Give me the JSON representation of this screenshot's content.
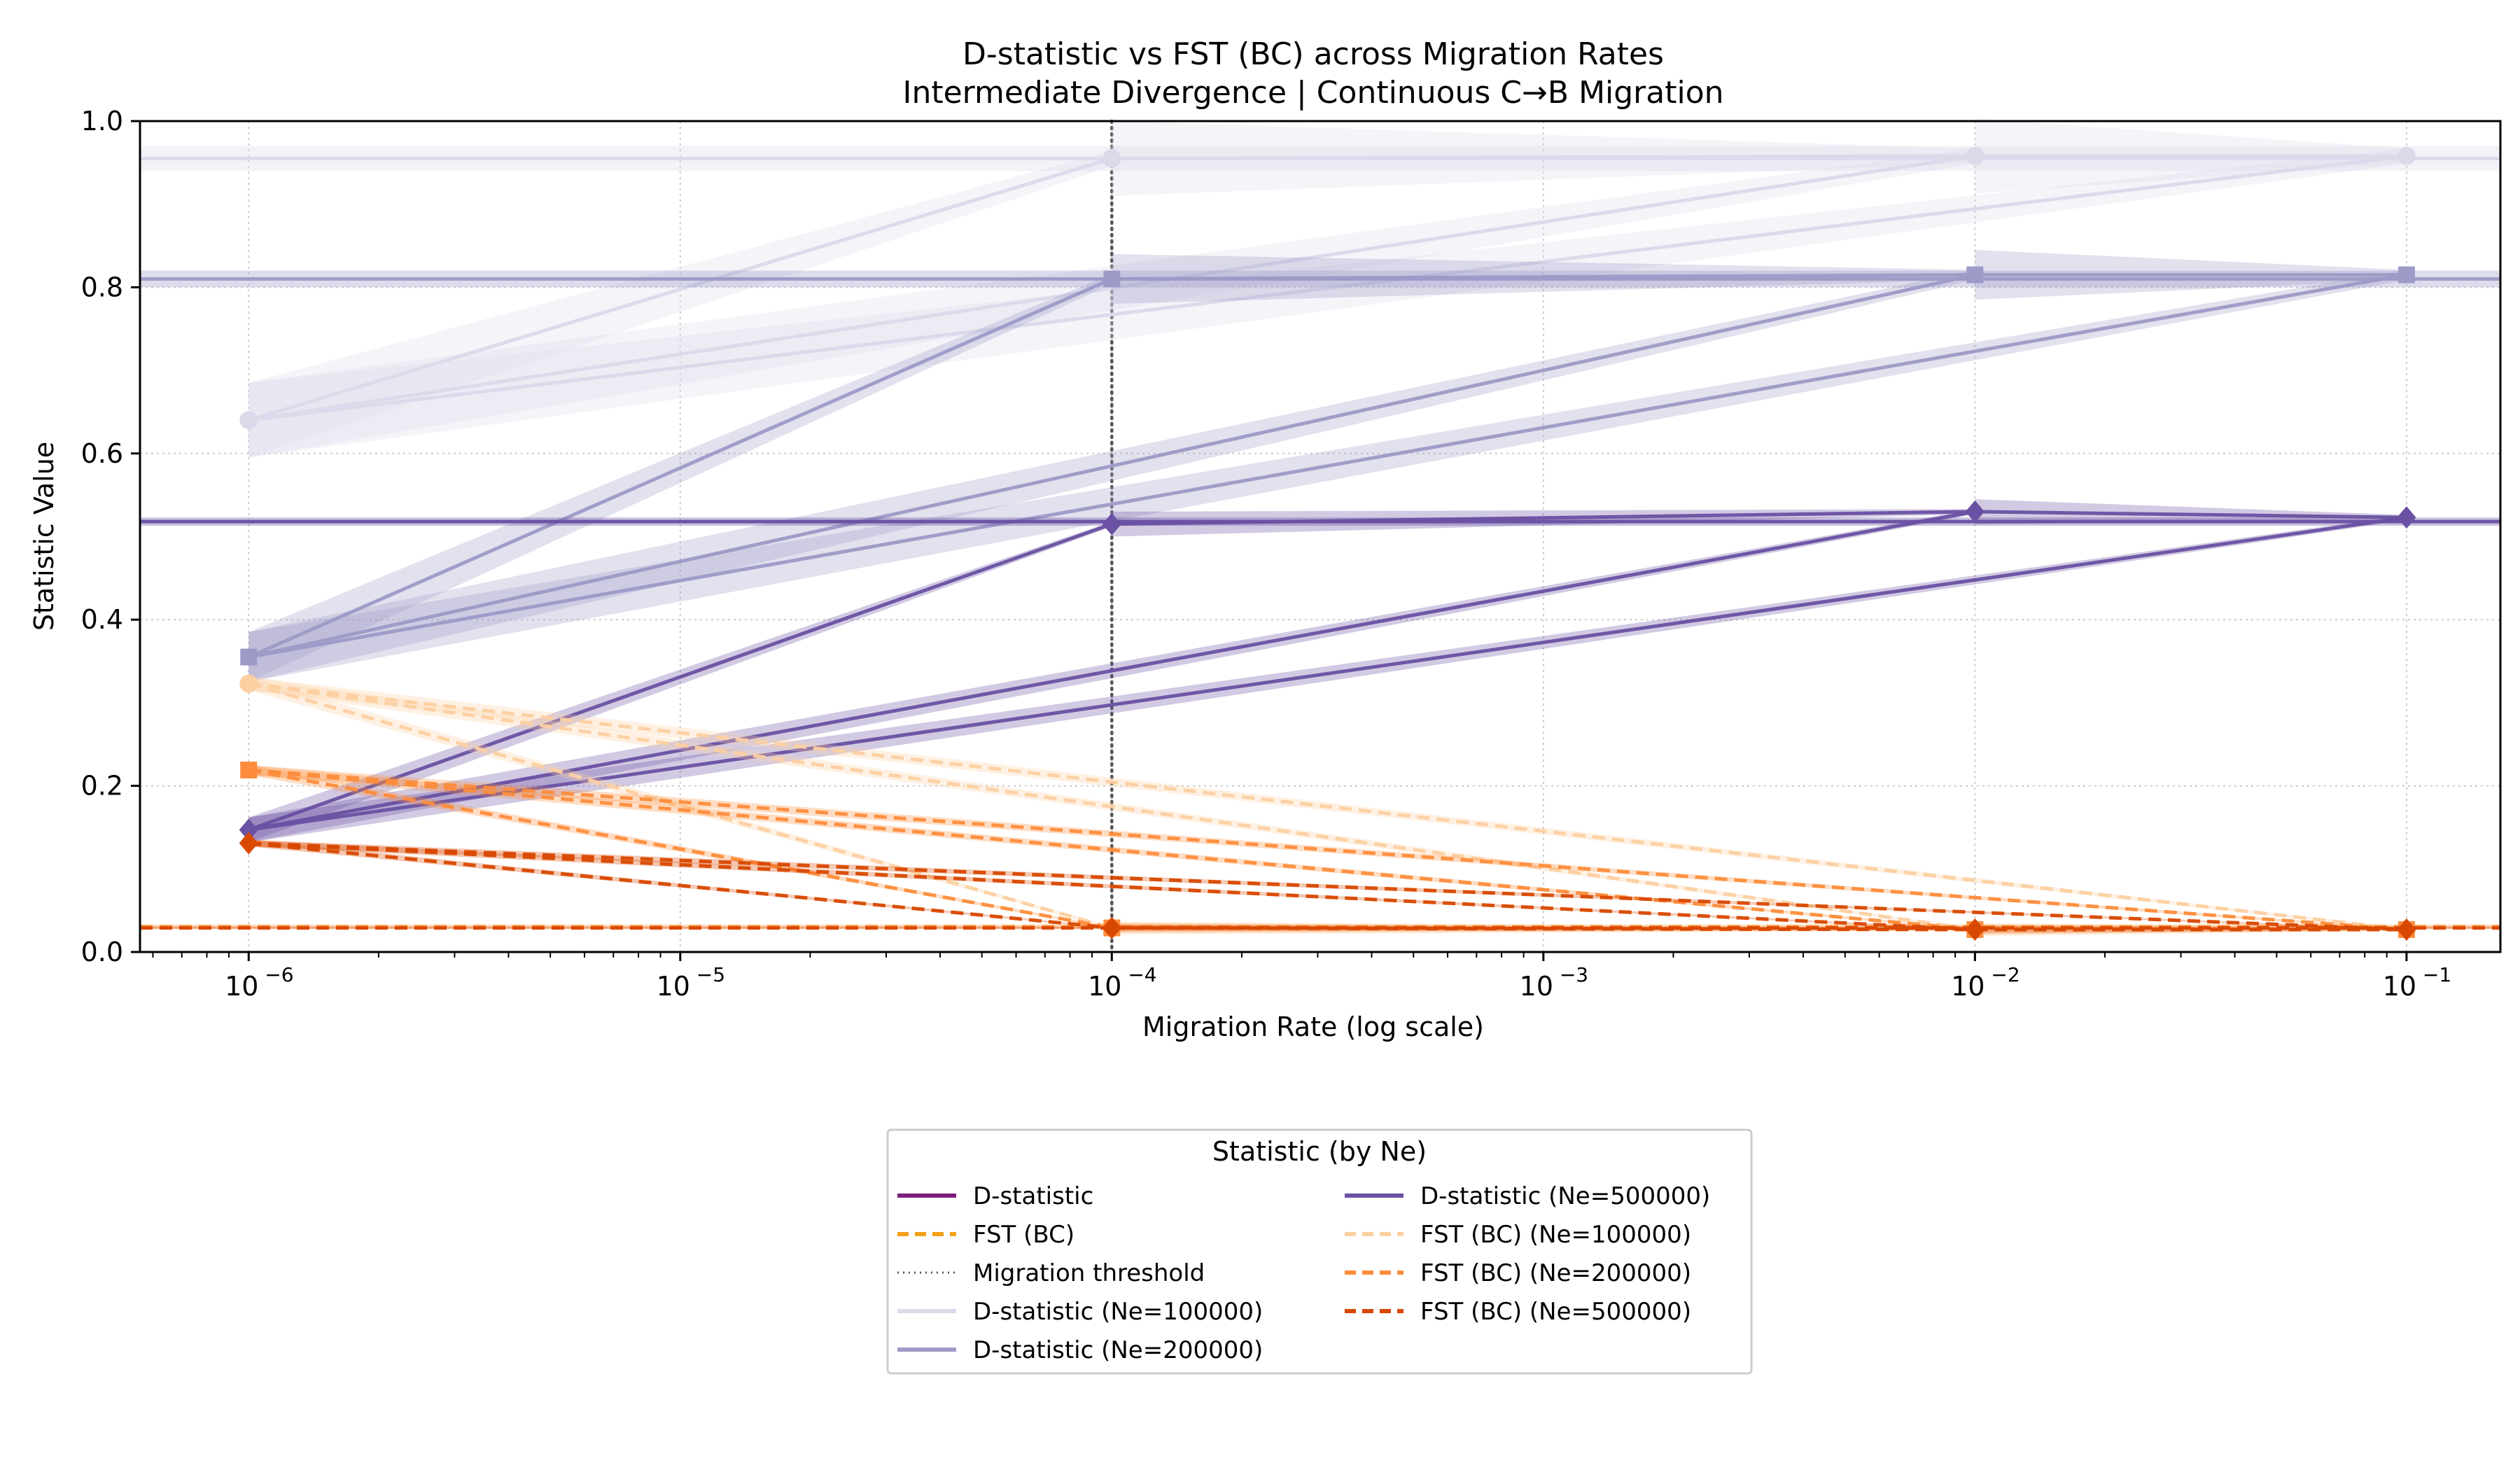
{
  "chart_data": {
    "type": "line",
    "title_line1": "D-statistic vs FST (BC) across Migration Rates",
    "title_line2": "Intermediate Divergence | Continuous C→B Migration",
    "xlabel": "Migration Rate (log scale)",
    "ylabel": "Statistic Value",
    "x_scale": "log",
    "xlim": [
      5.6e-07,
      0.165
    ],
    "ylim": [
      0,
      1.0
    ],
    "x_ticks": [
      1e-06,
      1e-05,
      0.0001,
      0.001,
      0.01,
      0.1
    ],
    "x_tick_labels": [
      {
        "base": "10",
        "exp": "−6"
      },
      {
        "base": "10",
        "exp": "−5"
      },
      {
        "base": "10",
        "exp": "−4"
      },
      {
        "base": "10",
        "exp": "−3"
      },
      {
        "base": "10",
        "exp": "−2"
      },
      {
        "base": "10",
        "exp": "−1"
      }
    ],
    "y_ticks": [
      0.0,
      0.2,
      0.4,
      0.6,
      0.8,
      1.0
    ],
    "y_tick_labels": [
      "0.0",
      "0.2",
      "0.4",
      "0.6",
      "0.8",
      "1.0"
    ],
    "grid": true,
    "threshold": {
      "x": 0.0001,
      "color": "#555555",
      "label": "Migration threshold"
    },
    "x": [
      1e-06,
      0.0001,
      0.01,
      0.1
    ],
    "series": [
      {
        "name": "D-statistic (Ne=100000)",
        "stat": "D",
        "color": "#dadaeb",
        "marker": "circle",
        "values": [
          0.64,
          0.955,
          0.958,
          0.958
        ],
        "band": 0.045,
        "flat": 0.955
      },
      {
        "name": "D-statistic (Ne=200000)",
        "stat": "D",
        "color": "#9e9ac8",
        "marker": "square",
        "values": [
          0.355,
          0.81,
          0.815,
          0.815
        ],
        "band": 0.03,
        "flat": 0.81
      },
      {
        "name": "D-statistic (Ne=500000)",
        "stat": "D",
        "color": "#6a51a3",
        "marker": "diamond",
        "values": [
          0.147,
          0.515,
          0.53,
          0.523
        ],
        "band": 0.015,
        "flat": 0.518
      },
      {
        "name": "FST (BC) (Ne=100000)",
        "stat": "FST",
        "color": "#fdd0a2",
        "marker": "circle",
        "values": [
          0.323,
          0.029,
          0.027,
          0.027
        ],
        "band": 0.008,
        "flat": 0.031
      },
      {
        "name": "FST (BC) (Ne=200000)",
        "stat": "FST",
        "color": "#fd8d3c",
        "marker": "square",
        "values": [
          0.219,
          0.029,
          0.027,
          0.027
        ],
        "band": 0.006,
        "flat": 0.03
      },
      {
        "name": "FST (BC) (Ne=500000)",
        "stat": "FST",
        "color": "#d94801",
        "marker": "diamond",
        "values": [
          0.131,
          0.029,
          0.027,
          0.027
        ],
        "band": 0.004,
        "flat": 0.029
      }
    ],
    "legend": {
      "title": "Statistic (by Ne)",
      "placement": "bottom-center",
      "entries": [
        {
          "label": "D-statistic",
          "color": "#7b1f7e",
          "style": "solid"
        },
        {
          "label": "FST (BC)",
          "color": "#f2a019",
          "style": "dashed"
        },
        {
          "label": "Migration threshold",
          "color": "#555555",
          "style": "dotted"
        },
        {
          "label": "D-statistic (Ne=100000)",
          "color": "#dadaeb",
          "style": "solid"
        },
        {
          "label": "D-statistic (Ne=200000)",
          "color": "#9e9ac8",
          "style": "solid"
        },
        {
          "label": "D-statistic (Ne=500000)",
          "color": "#6a51a3",
          "style": "solid"
        },
        {
          "label": "FST (BC) (Ne=100000)",
          "color": "#fdd0a2",
          "style": "dashed"
        },
        {
          "label": "FST (BC) (Ne=200000)",
          "color": "#fd8d3c",
          "style": "dashed"
        },
        {
          "label": "FST (BC) (Ne=500000)",
          "color": "#d94801",
          "style": "dashed"
        }
      ]
    }
  }
}
